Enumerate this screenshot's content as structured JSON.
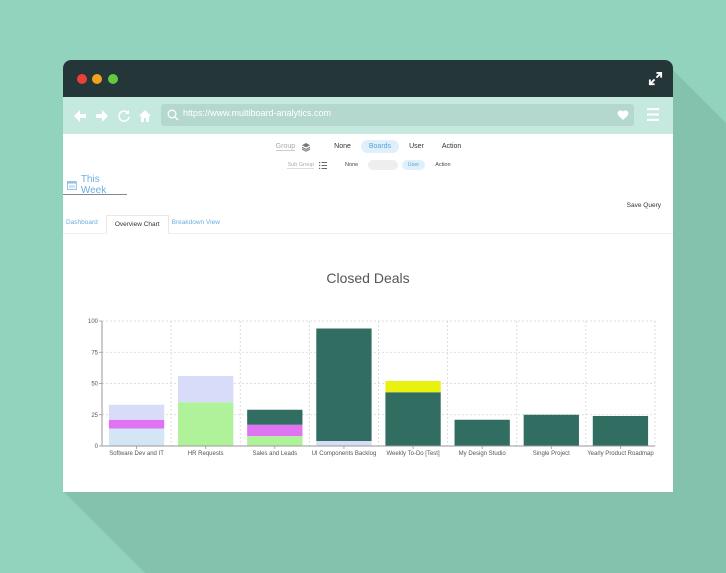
{
  "browser": {
    "url": "https://www.multiboard-analytics.com",
    "window_controls": [
      "close",
      "minimize",
      "maximize"
    ],
    "icons": {
      "back": "arrow-left-icon",
      "forward": "arrow-right-icon",
      "reload": "reload-icon",
      "home": "home-icon",
      "search": "search-icon",
      "favorite": "heart-icon",
      "menu": "hamburger-menu-icon",
      "fullscreen": "expand-icon"
    }
  },
  "filters": {
    "group": {
      "label": "Group",
      "icon": "layers-icon",
      "options": [
        "None",
        "Boards",
        "User",
        "Action"
      ],
      "selected": "Boards"
    },
    "sub_group": {
      "label": "Sub Group",
      "icon": "list-icon",
      "options": [
        "None",
        "Boards",
        "User",
        "Action"
      ],
      "disabled": "Boards",
      "selected": "User"
    }
  },
  "date_range": {
    "icon": "calendar-icon",
    "label": "This Week"
  },
  "save_query": "Save Query",
  "tabs": [
    {
      "label": "Dashboard",
      "active": false
    },
    {
      "label": "Overview Chart",
      "active": true
    },
    {
      "label": "Breakdown View",
      "active": false
    }
  ],
  "colors": {
    "background": "#92d3bd",
    "titlebar": "#253639",
    "navbar": "#c5e9df",
    "accent_blue": "#6aaee0",
    "series_light_blue": "#d3e6f5",
    "series_magenta": "#df73f2",
    "series_lavender": "#d8dcf8",
    "series_green": "#b0f29a",
    "series_teal": "#326d61",
    "series_yellow": "#e8f20e"
  },
  "chart_data": {
    "type": "bar",
    "stacked": true,
    "title": "Closed Deals",
    "xlabel": "",
    "ylabel": "",
    "ylim": [
      0,
      100
    ],
    "yticks": [
      0,
      25,
      50,
      75,
      100
    ],
    "grid": true,
    "legend": "none",
    "categories": [
      "Software Dev and IT",
      "HR Requests",
      "Sales and Leads",
      "UI Components Backlog",
      "Weekly To-Do [Test]",
      "My Design Studio",
      "Single Project",
      "Yearly Product Roadmap"
    ],
    "series": [
      {
        "name": "light-blue",
        "color": "#d3e6f5",
        "values": [
          14,
          0,
          0,
          0,
          0,
          0,
          0,
          0
        ]
      },
      {
        "name": "green",
        "color": "#b0f29a",
        "values": [
          0,
          35,
          8,
          0,
          0,
          0,
          0,
          0
        ]
      },
      {
        "name": "magenta",
        "color": "#df73f2",
        "values": [
          7,
          0,
          9,
          0,
          0,
          0,
          0,
          0
        ]
      },
      {
        "name": "lavender",
        "color": "#d8dcf8",
        "values": [
          12,
          21,
          0,
          4,
          0,
          0,
          0,
          0
        ]
      },
      {
        "name": "teal",
        "color": "#326d61",
        "values": [
          0,
          0,
          12,
          90,
          43,
          21,
          25,
          24
        ]
      },
      {
        "name": "yellow",
        "color": "#e8f20e",
        "values": [
          0,
          0,
          0,
          0,
          9,
          0,
          0,
          0
        ]
      }
    ],
    "totals": [
      33,
      56,
      29,
      94,
      52,
      21,
      25,
      24
    ]
  }
}
